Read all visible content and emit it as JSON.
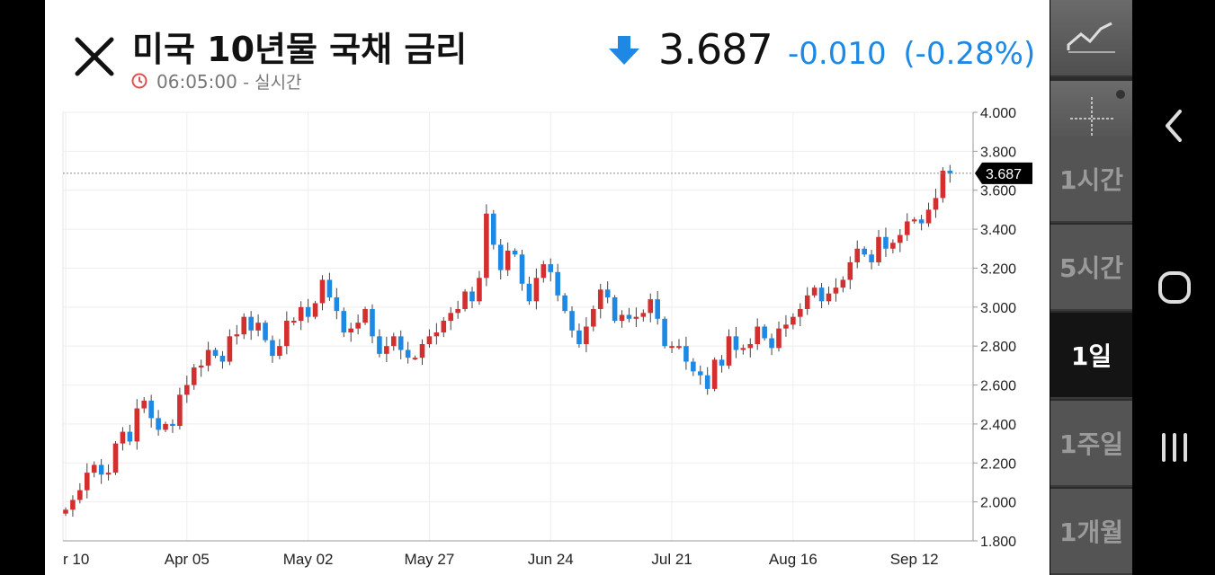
{
  "header": {
    "title": "미국 10년물 국채 금리",
    "time": "06:05:00",
    "time_suffix": "- 실시간",
    "price": "3.687",
    "change": "-0.010",
    "change_pct": "(-0.28%)",
    "price_label": "3.687",
    "colors": {
      "down": "#1e88e5",
      "up": "#d32f2f"
    }
  },
  "timeframes": [
    {
      "label": "1시간",
      "active": false
    },
    {
      "label": "5시간",
      "active": false
    },
    {
      "label": "1일",
      "active": true
    },
    {
      "label": "1주일",
      "active": false
    },
    {
      "label": "1개월",
      "active": false
    }
  ],
  "toolbar": {
    "icons": [
      "line-chart-icon",
      "crosshair-icon"
    ]
  },
  "nav": {
    "icons": [
      "back-icon",
      "home-icon",
      "recents-icon"
    ]
  },
  "chart_data": {
    "type": "candlestick",
    "current_value": 3.687,
    "ylim": [
      1.8,
      4.0
    ],
    "y_ticks": [
      "4.000",
      "3.800",
      "3.600",
      "3.400",
      "3.200",
      "3.000",
      "2.800",
      "2.600",
      "2.400",
      "2.200",
      "2.000",
      "1.800"
    ],
    "x_ticks": [
      {
        "label": "r 10",
        "i": 0
      },
      {
        "label": "Apr 05",
        "i": 17
      },
      {
        "label": "May 02",
        "i": 34
      },
      {
        "label": "May 27",
        "i": 51
      },
      {
        "label": "Jun 24",
        "i": 68
      },
      {
        "label": "Jul 21",
        "i": 85
      },
      {
        "label": "Aug 16",
        "i": 102
      },
      {
        "label": "Sep 12",
        "i": 119
      }
    ],
    "grid": true,
    "closes": [
      1.96,
      2.01,
      2.06,
      2.15,
      2.19,
      2.14,
      2.15,
      2.3,
      2.36,
      2.31,
      2.48,
      2.52,
      2.43,
      2.37,
      2.4,
      2.39,
      2.55,
      2.6,
      2.69,
      2.7,
      2.78,
      2.75,
      2.72,
      2.85,
      2.86,
      2.95,
      2.88,
      2.92,
      2.83,
      2.75,
      2.8,
      2.93,
      2.93,
      3.0,
      2.95,
      3.02,
      3.14,
      3.05,
      2.98,
      2.87,
      2.89,
      2.92,
      2.99,
      2.85,
      2.76,
      2.8,
      2.85,
      2.78,
      2.74,
      2.74,
      2.81,
      2.85,
      2.87,
      2.93,
      2.97,
      2.99,
      3.08,
      3.03,
      3.15,
      3.48,
      3.32,
      3.19,
      3.29,
      3.27,
      3.12,
      3.03,
      3.15,
      3.22,
      3.18,
      3.06,
      2.98,
      2.88,
      2.81,
      2.9,
      2.99,
      3.09,
      3.05,
      2.93,
      2.96,
      2.94,
      2.95,
      2.97,
      3.04,
      2.94,
      2.8,
      2.8,
      2.8,
      2.72,
      2.67,
      2.65,
      2.58,
      2.73,
      2.7,
      2.85,
      2.78,
      2.79,
      2.81,
      2.9,
      2.84,
      2.79,
      2.89,
      2.91,
      2.95,
      2.99,
      3.06,
      3.1,
      3.03,
      3.07,
      3.1,
      3.14,
      3.23,
      3.3,
      3.27,
      3.23,
      3.36,
      3.3,
      3.33,
      3.37,
      3.44,
      3.45,
      3.43,
      3.5,
      3.56,
      3.7,
      3.687
    ]
  }
}
